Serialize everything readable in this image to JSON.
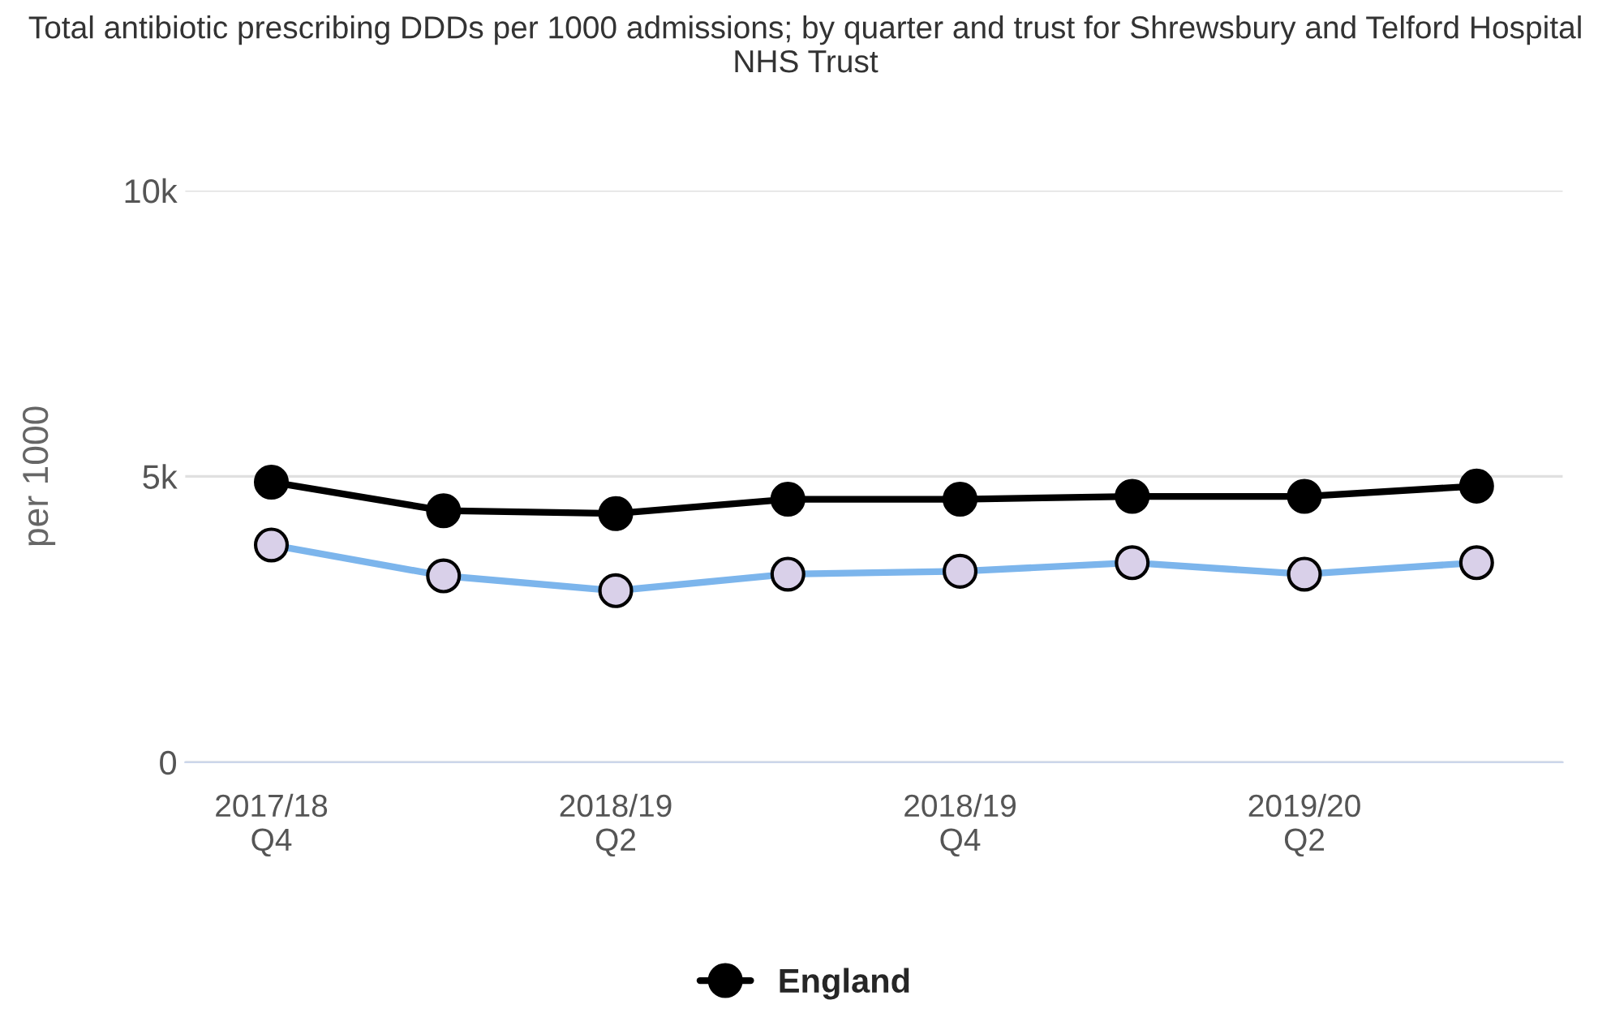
{
  "chart_data": {
    "type": "line",
    "title": "Total antibiotic prescribing DDDs per 1000 admissions; by quarter and trust for Shrewsbury and Telford Hospital NHS Trust",
    "ylabel": "per 1000",
    "categories": [
      "2017/18\nQ4",
      null,
      "2018/19\nQ2",
      null,
      "2018/19\nQ4",
      null,
      "2019/20\nQ2",
      null
    ],
    "series": [
      {
        "name": "England",
        "color": "#000000",
        "values": [
          4900,
          4400,
          4350,
          4600,
          4600,
          4650,
          4650,
          4830
        ]
      },
      {
        "color": "#7cb5ec",
        "values": [
          3800,
          3260,
          3000,
          3290,
          3340,
          3490,
          3290,
          3490
        ]
      }
    ],
    "ylim": [
      0,
      10000
    ],
    "yticks": [
      {
        "value": 0,
        "label": "0"
      },
      {
        "value": 5000,
        "label": "5k"
      },
      {
        "value": 10000,
        "label": "10k"
      }
    ],
    "grid": "y",
    "legend": "bottom",
    "marker": "circle",
    "line_style": "solid"
  }
}
